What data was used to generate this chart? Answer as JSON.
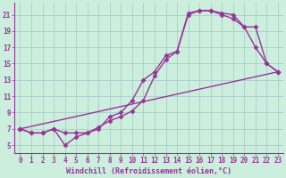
{
  "xlabel": "Windchill (Refroidissement éolien,°C)",
  "bg_color": "#cceedd",
  "grid_color": "#aacccc",
  "line_color": "#993399",
  "xlim": [
    -0.5,
    23.5
  ],
  "ylim": [
    4.0,
    22.5
  ],
  "yticks": [
    5,
    7,
    9,
    11,
    13,
    15,
    17,
    19,
    21
  ],
  "xticks": [
    0,
    1,
    2,
    3,
    4,
    5,
    6,
    7,
    8,
    9,
    10,
    11,
    12,
    13,
    14,
    15,
    16,
    17,
    18,
    19,
    20,
    21,
    22,
    23
  ],
  "line1_x": [
    0,
    1,
    2,
    3,
    4,
    5,
    6,
    7,
    8,
    9,
    10,
    11,
    12,
    13,
    14,
    15,
    16,
    17,
    18,
    19,
    20,
    21,
    22,
    23
  ],
  "line1_y": [
    7.0,
    6.5,
    6.5,
    7.0,
    5.0,
    6.0,
    6.5,
    7.0,
    8.5,
    9.0,
    10.5,
    13.0,
    14.0,
    16.0,
    16.5,
    21.2,
    21.5,
    21.5,
    21.2,
    21.0,
    19.5,
    17.0,
    15.0,
    14.0
  ],
  "line2_x": [
    0,
    1,
    2,
    3,
    4,
    5,
    6,
    7,
    8,
    9,
    10,
    11,
    12,
    13,
    14,
    15,
    16,
    17,
    18,
    19,
    20,
    21,
    22,
    23
  ],
  "line2_y": [
    7.0,
    6.5,
    6.5,
    7.0,
    6.5,
    6.5,
    6.5,
    7.2,
    8.0,
    8.5,
    9.2,
    10.5,
    13.5,
    15.5,
    16.5,
    21.0,
    21.5,
    21.5,
    21.0,
    20.5,
    19.5,
    19.5,
    15.0,
    14.0
  ],
  "line3_x": [
    0,
    23
  ],
  "line3_y": [
    7.0,
    14.0
  ],
  "marker": "D",
  "markersize": 2.5,
  "linewidth": 1.0,
  "tick_fontsize": 5.5,
  "xlabel_fontsize": 6.0
}
